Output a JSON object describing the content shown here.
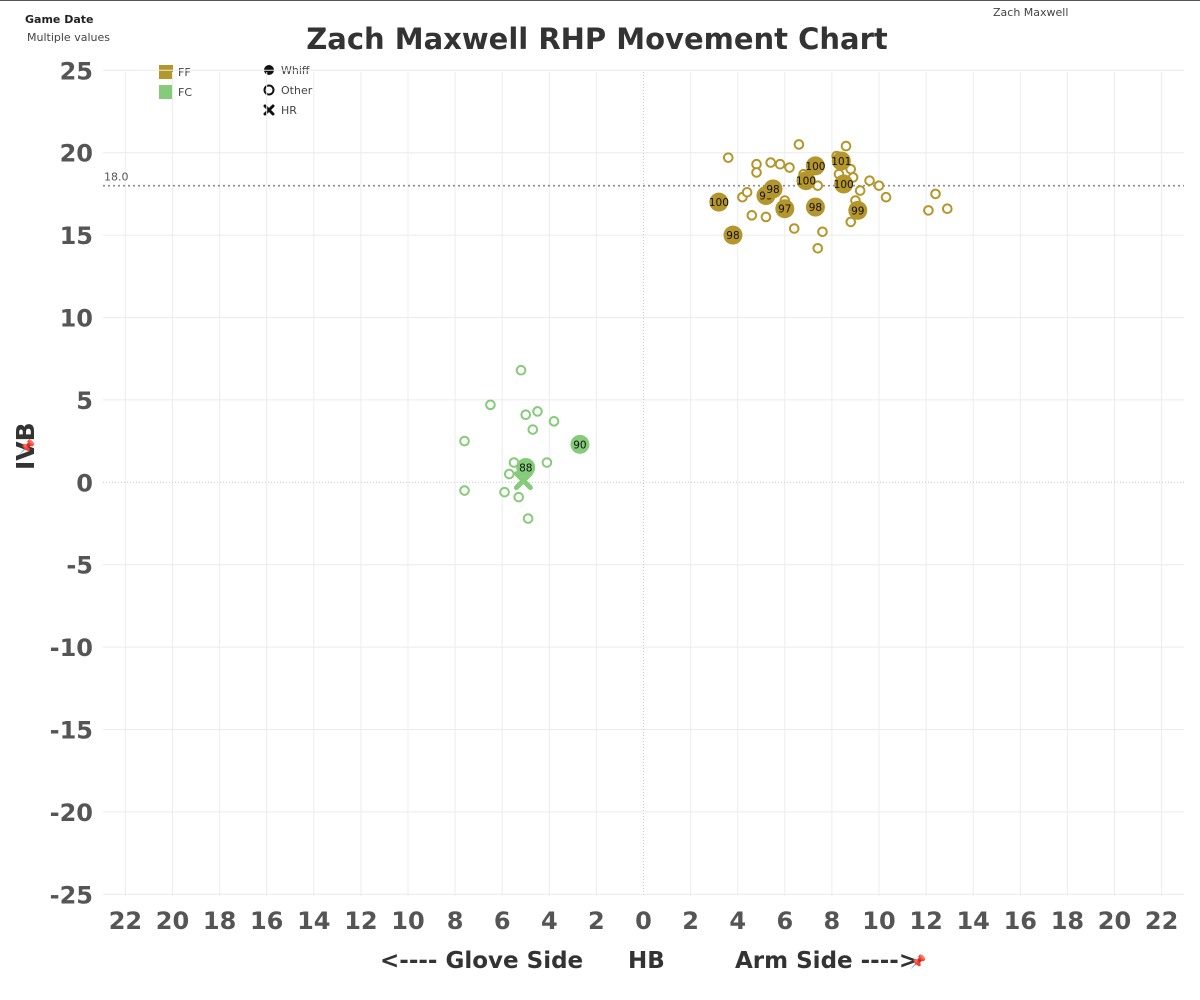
{
  "header": {
    "filter_label": "Game Date",
    "filter_value": "Multiple values",
    "pitcher_name": "Zach Maxwell",
    "title": "Zach Maxwell RHP Movement Chart"
  },
  "legend": {
    "pitch_types": [
      {
        "label": "FF",
        "color": "#B5962A"
      },
      {
        "label": "FC",
        "color": "#86CB7A"
      }
    ],
    "outcomes": [
      {
        "label": "Whiff",
        "icon": "filled-circle-icon"
      },
      {
        "label": "Other",
        "icon": "open-circle-icon"
      },
      {
        "label": "HR",
        "icon": "x-mark-icon"
      }
    ]
  },
  "axis_titles": {
    "x_left": "<---- Glove Side",
    "x_center": "HB",
    "x_right": "Arm Side ---->",
    "y": "IVB"
  },
  "chart_data": {
    "type": "scatter",
    "title": "Zach Maxwell RHP Movement Chart",
    "xlabel": "<---- Glove Side        HB        Arm Side ---->",
    "ylabel": "IVB",
    "xlim": [
      -22,
      22
    ],
    "ylim": [
      -25,
      25
    ],
    "x_ticks": [
      22,
      20,
      18,
      16,
      14,
      12,
      10,
      8,
      6,
      4,
      2,
      0,
      2,
      4,
      6,
      8,
      10,
      12,
      14,
      16,
      18,
      20,
      22
    ],
    "y_ticks": [
      25,
      20,
      15,
      10,
      5,
      0,
      -5,
      -10,
      -15,
      -20,
      -25
    ],
    "grid": true,
    "reference_line": {
      "y": 18.0,
      "label": "18.0"
    },
    "legend_position": "top-left",
    "series": [
      {
        "name": "FF",
        "color": "#B5962A",
        "whiffs": [
          {
            "x": 3.2,
            "y": 17.0,
            "velo": 100
          },
          {
            "x": 3.8,
            "y": 15.0,
            "velo": 98
          },
          {
            "x": 5.2,
            "y": 17.4,
            "velo": 99
          },
          {
            "x": 5.5,
            "y": 17.8,
            "velo": 98
          },
          {
            "x": 6.0,
            "y": 16.6,
            "velo": 97
          },
          {
            "x": 6.9,
            "y": 18.3,
            "velo": 100
          },
          {
            "x": 7.3,
            "y": 19.2,
            "velo": 100
          },
          {
            "x": 7.3,
            "y": 16.7,
            "velo": 98
          },
          {
            "x": 8.4,
            "y": 19.5,
            "velo": 101
          },
          {
            "x": 8.5,
            "y": 18.1,
            "velo": 100
          },
          {
            "x": 9.1,
            "y": 16.5,
            "velo": 99
          }
        ],
        "other": [
          {
            "x": 3.6,
            "y": 19.7
          },
          {
            "x": 4.2,
            "y": 17.3
          },
          {
            "x": 4.4,
            "y": 17.6
          },
          {
            "x": 4.6,
            "y": 16.2
          },
          {
            "x": 4.8,
            "y": 19.3
          },
          {
            "x": 4.8,
            "y": 18.8
          },
          {
            "x": 5.2,
            "y": 16.1
          },
          {
            "x": 5.4,
            "y": 19.4
          },
          {
            "x": 5.8,
            "y": 19.3
          },
          {
            "x": 6.0,
            "y": 17.1
          },
          {
            "x": 6.2,
            "y": 19.1
          },
          {
            "x": 6.4,
            "y": 15.4
          },
          {
            "x": 6.6,
            "y": 20.5
          },
          {
            "x": 6.8,
            "y": 18.7
          },
          {
            "x": 7.4,
            "y": 18.0
          },
          {
            "x": 7.4,
            "y": 14.2
          },
          {
            "x": 7.6,
            "y": 15.2
          },
          {
            "x": 8.2,
            "y": 19.8
          },
          {
            "x": 8.3,
            "y": 18.7
          },
          {
            "x": 8.6,
            "y": 20.4
          },
          {
            "x": 8.8,
            "y": 19.0
          },
          {
            "x": 8.8,
            "y": 15.8
          },
          {
            "x": 8.9,
            "y": 18.5
          },
          {
            "x": 9.0,
            "y": 17.1
          },
          {
            "x": 9.2,
            "y": 17.7
          },
          {
            "x": 9.6,
            "y": 18.3
          },
          {
            "x": 10.0,
            "y": 18.0
          },
          {
            "x": 10.3,
            "y": 17.3
          },
          {
            "x": 12.1,
            "y": 16.5
          },
          {
            "x": 12.4,
            "y": 17.5
          },
          {
            "x": 12.9,
            "y": 16.6
          }
        ],
        "hr": []
      },
      {
        "name": "FC",
        "color": "#86CB7A",
        "whiffs": [
          {
            "x": -2.7,
            "y": 2.3,
            "velo": 90
          },
          {
            "x": -5.0,
            "y": 0.9,
            "velo": 88
          }
        ],
        "other": [
          {
            "x": -7.6,
            "y": 2.5
          },
          {
            "x": -7.6,
            "y": -0.5
          },
          {
            "x": -6.5,
            "y": 4.7
          },
          {
            "x": -5.9,
            "y": -0.6
          },
          {
            "x": -5.7,
            "y": 0.5
          },
          {
            "x": -5.5,
            "y": 1.2
          },
          {
            "x": -5.3,
            "y": -0.9
          },
          {
            "x": -5.2,
            "y": 6.8
          },
          {
            "x": -5.0,
            "y": 4.1
          },
          {
            "x": -4.9,
            "y": -2.2
          },
          {
            "x": -4.7,
            "y": 3.2
          },
          {
            "x": -4.5,
            "y": 4.3
          },
          {
            "x": -4.1,
            "y": 1.2
          },
          {
            "x": -3.8,
            "y": 3.7
          }
        ],
        "hr": [
          {
            "x": -5.1,
            "y": 0.1
          }
        ]
      }
    ]
  }
}
